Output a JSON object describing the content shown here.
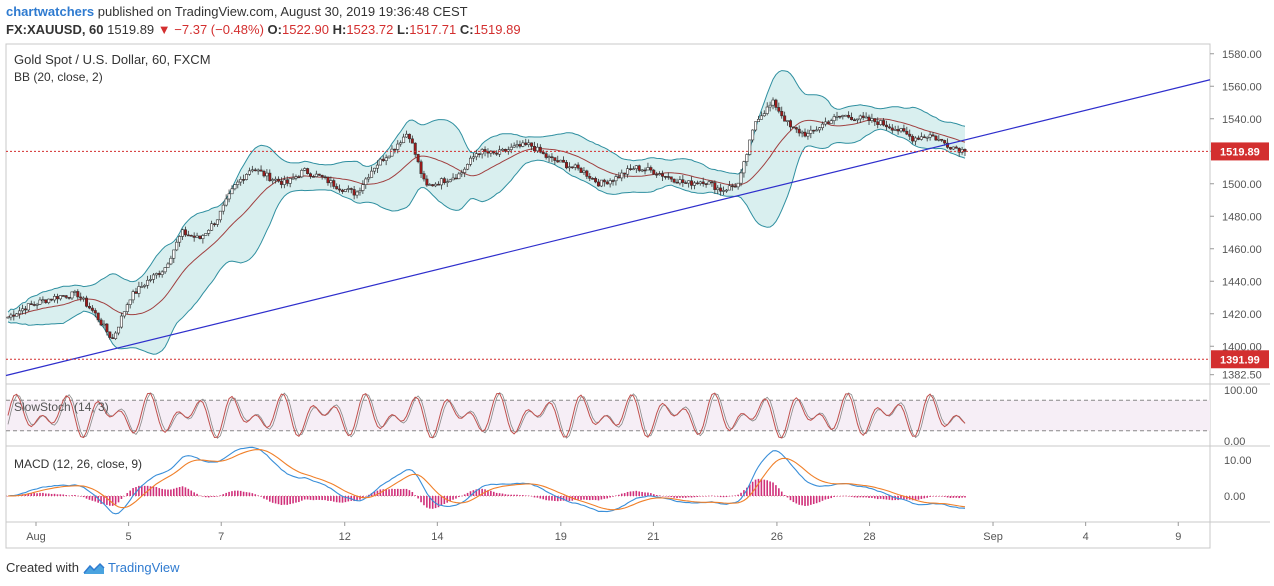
{
  "header": {
    "user": "chartwatchers",
    "published_text": "published on TradingView.com, August 30, 2019 19:36:48 CEST",
    "symbol": "FX:XAUUSD, 60",
    "last": "1519.89",
    "change": "−7.37 (−0.48%)",
    "o_label": "O:",
    "o_value": "1522.90",
    "h_label": "H:",
    "h_value": "1523.72",
    "l_label": "L:",
    "l_value": "1517.71",
    "c_label": "C:",
    "c_value": "1519.89"
  },
  "footer": {
    "created_with": "Created with",
    "brand": "TradingView"
  },
  "colors": {
    "bb_fill": "#d9efef",
    "bb_band": "#2f8fa0",
    "bb_basis": "#a04040",
    "trendline": "#2e2ecc",
    "level": "#d32f2f",
    "up": "#ffffff",
    "down": "#a01818",
    "stoch_fill": "#f6eef6",
    "stoch_line": "#c0504d",
    "macd_line": "#3a8fd9",
    "signal_line": "#f0802a",
    "hist": "#d0307a"
  },
  "chart_data": {
    "type": "candlestick",
    "title": "Gold Spot / U.S. Dollar, 60, FXCM",
    "indicator_bb": "BB (20, close, 2)",
    "indicator_stoch": "SlowStoch (14, 3)",
    "indicator_macd": "MACD (12, 26, close, 9)",
    "price_ticks": [
      "1580.00",
      "1560.00",
      "1540.00",
      "1520.00",
      "1500.00",
      "1480.00",
      "1460.00",
      "1440.00",
      "1420.00",
      "1400.00",
      "1382.50"
    ],
    "price_tick_values": [
      1580,
      1560,
      1540,
      1520,
      1500,
      1480,
      1460,
      1440,
      1420,
      1400,
      1382.5
    ],
    "ylim": [
      1378,
      1586
    ],
    "current_price_label": "1519.89",
    "current_price": 1519.89,
    "support_label": "1391.99",
    "support_price": 1391.99,
    "stoch_ticks": [
      "100.00",
      "0.00"
    ],
    "stoch_overbought": 80,
    "stoch_oversold": 20,
    "macd_ticks": [
      "10.00",
      "0.00"
    ],
    "x_ticks": [
      "Aug",
      "5",
      "7",
      "12",
      "14",
      "19",
      "21",
      "26",
      "28",
      "Sep",
      "4",
      "9"
    ],
    "x_tick_index": [
      0,
      6,
      12,
      20,
      26,
      34,
      40,
      48,
      54,
      62,
      68,
      74
    ],
    "trendline": {
      "start": [
        "Aug 1",
        1382
      ],
      "end": [
        "Sep 10",
        1564
      ]
    },
    "daily_closes": [
      1418,
      1424,
      1428,
      1431,
      1432,
      1420,
      1404,
      1430,
      1440,
      1448,
      1470,
      1466,
      1478,
      1498,
      1510,
      1504,
      1500,
      1508,
      1504,
      1498,
      1494,
      1510,
      1520,
      1532,
      1498,
      1502,
      1506,
      1520,
      1518,
      1522,
      1524,
      1516,
      1512,
      1508,
      1500,
      1504,
      1510,
      1508,
      1504,
      1500,
      1502,
      1496,
      1500,
      1540,
      1550,
      1534,
      1530,
      1538,
      1542,
      1540,
      1538,
      1534,
      1528,
      1530,
      1524,
      1520
    ]
  }
}
